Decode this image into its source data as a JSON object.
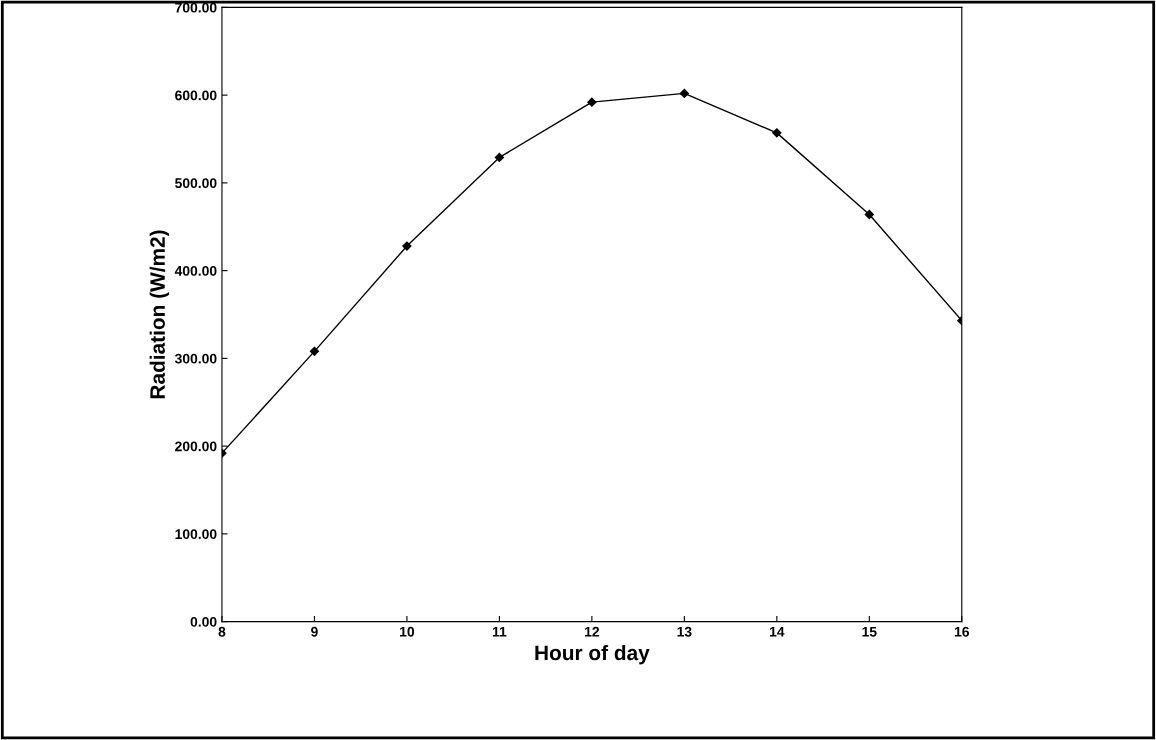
{
  "chart_data": {
    "type": "line",
    "xlabel": "Hour of day",
    "ylabel": "Radiation (W/m2)",
    "x": [
      8,
      9,
      10,
      11,
      12,
      13,
      14,
      15,
      16
    ],
    "series": [
      {
        "color": "#000000",
        "values": [
          192,
          308,
          428,
          529,
          592,
          602,
          557,
          464,
          343
        ]
      }
    ],
    "xlim": [
      8,
      16
    ],
    "xticks": [
      8,
      9,
      10,
      11,
      12,
      13,
      14,
      15,
      16
    ],
    "ylim": [
      0,
      700
    ],
    "yticks": [
      {
        "value": 0,
        "label": "0.00"
      },
      {
        "value": 100,
        "label": "100.00"
      },
      {
        "value": 200,
        "label": "200.00"
      },
      {
        "value": 300,
        "label": "300.00"
      },
      {
        "value": 400,
        "label": "400.00"
      },
      {
        "value": 500,
        "label": "500.00"
      },
      {
        "value": 600,
        "label": "600.00"
      },
      {
        "value": 700,
        "label": "700.00"
      }
    ],
    "grid": false,
    "legend": false,
    "marker": "diamond",
    "line_style": "solid"
  }
}
